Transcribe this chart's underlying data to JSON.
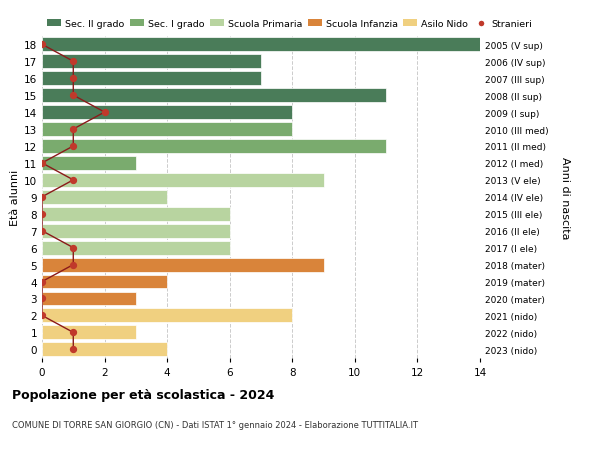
{
  "ages": [
    18,
    17,
    16,
    15,
    14,
    13,
    12,
    11,
    10,
    9,
    8,
    7,
    6,
    5,
    4,
    3,
    2,
    1,
    0
  ],
  "years": [
    "2005 (V sup)",
    "2006 (IV sup)",
    "2007 (III sup)",
    "2008 (II sup)",
    "2009 (I sup)",
    "2010 (III med)",
    "2011 (II med)",
    "2012 (I med)",
    "2013 (V ele)",
    "2014 (IV ele)",
    "2015 (III ele)",
    "2016 (II ele)",
    "2017 (I ele)",
    "2018 (mater)",
    "2019 (mater)",
    "2020 (mater)",
    "2021 (nido)",
    "2022 (nido)",
    "2023 (nido)"
  ],
  "bar_values": [
    14,
    7,
    7,
    11,
    8,
    8,
    11,
    3,
    9,
    4,
    6,
    6,
    6,
    9,
    4,
    3,
    8,
    3,
    4
  ],
  "bar_colors": [
    "#4a7c59",
    "#4a7c59",
    "#4a7c59",
    "#4a7c59",
    "#4a7c59",
    "#7aab6e",
    "#7aab6e",
    "#7aab6e",
    "#b8d4a0",
    "#b8d4a0",
    "#b8d4a0",
    "#b8d4a0",
    "#b8d4a0",
    "#d9843a",
    "#d9843a",
    "#d9843a",
    "#f0d080",
    "#f0d080",
    "#f0d080"
  ],
  "stranieri_values": [
    0,
    1,
    1,
    1,
    2,
    1,
    1,
    0,
    1,
    0,
    0,
    0,
    1,
    1,
    0,
    0,
    0,
    1,
    1
  ],
  "legend_labels": [
    "Sec. II grado",
    "Sec. I grado",
    "Scuola Primaria",
    "Scuola Infanzia",
    "Asilo Nido",
    "Stranieri"
  ],
  "legend_colors": [
    "#4a7c59",
    "#7aab6e",
    "#b8d4a0",
    "#d9843a",
    "#f0d080",
    "#c0392b"
  ],
  "ylabel_left": "Età alunni",
  "ylabel_right": "Anni di nascita",
  "title": "Popolazione per età scolastica - 2024",
  "subtitle": "COMUNE DI TORRE SAN GIORGIO (CN) - Dati ISTAT 1° gennaio 2024 - Elaborazione TUTTITALIA.IT",
  "xlim": [
    0,
    14
  ],
  "xticks": [
    0,
    2,
    4,
    6,
    8,
    10,
    12,
    14
  ],
  "stranieri_color": "#c0392b",
  "line_color": "#8b1a1a",
  "bg_color": "#ffffff",
  "grid_color": "#cccccc"
}
